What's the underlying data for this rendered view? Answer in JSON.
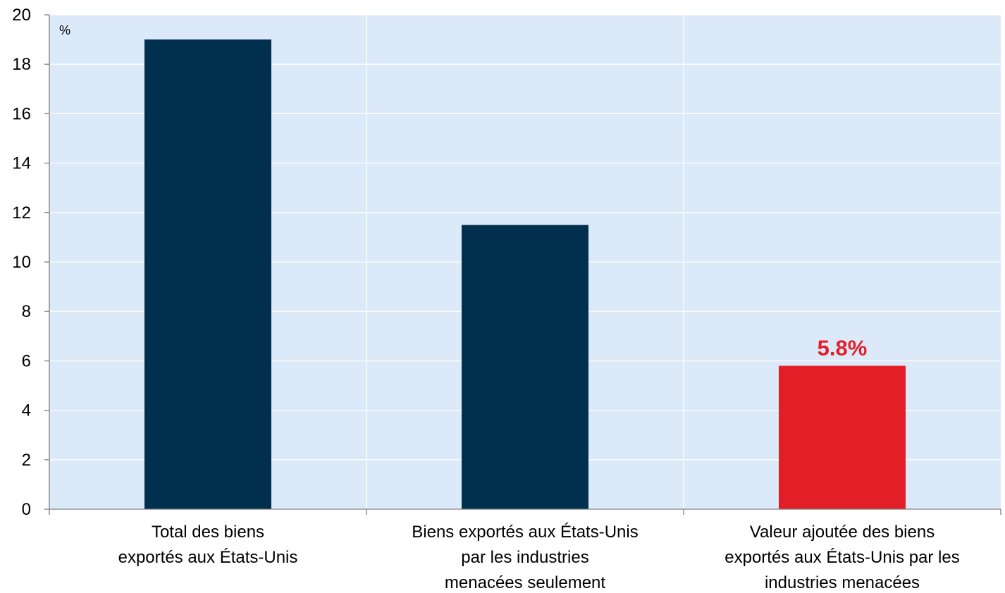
{
  "chart_data": {
    "type": "bar",
    "title": "",
    "xlabel": "",
    "ylabel": "",
    "unit_label": "%",
    "ylim": [
      0,
      20
    ],
    "y_ticks": [
      "0",
      "2",
      "4",
      "6",
      "8",
      "10",
      "12",
      "14",
      "16",
      "18",
      "20"
    ],
    "grid": true,
    "categories": [
      [
        "Total des biens",
        "exportés aux États-Unis"
      ],
      [
        "Biens exportés aux États-Unis",
        "par les industries",
        "menacées seulement"
      ],
      [
        "Valeur ajoutée des biens",
        "exportés aux États-Unis par les",
        "industries menacées"
      ]
    ],
    "values": [
      19.0,
      11.5,
      5.8
    ],
    "bar_colors": [
      "#00304d",
      "#00304d",
      "#e41e26"
    ],
    "data_labels": [
      "",
      "",
      "5.8%"
    ],
    "data_label_color": "#e41e26"
  },
  "colors": {
    "plot_background": "#dce9f9",
    "gridline": "#ffffff",
    "axis": "#808080"
  }
}
